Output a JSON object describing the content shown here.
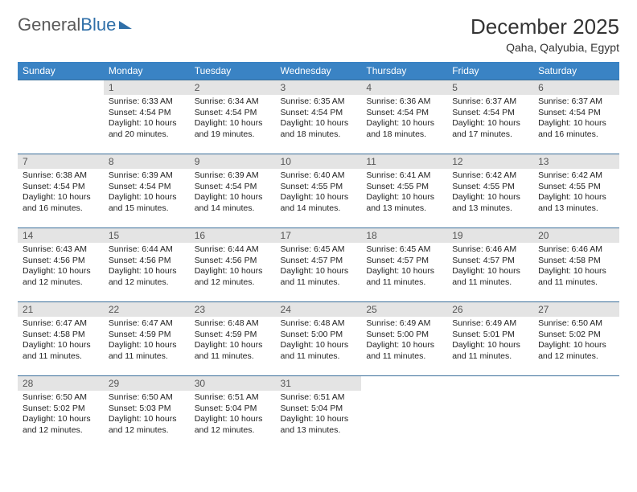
{
  "logo": {
    "text1": "General",
    "text2": "Blue"
  },
  "title": "December 2025",
  "location": "Qaha, Qalyubia, Egypt",
  "weekdays": [
    "Sunday",
    "Monday",
    "Tuesday",
    "Wednesday",
    "Thursday",
    "Friday",
    "Saturday"
  ],
  "colors": {
    "header_bg": "#3a83c4",
    "header_text": "#ffffff",
    "daynum_bg": "#e4e4e4",
    "row_border": "#3a6e9a",
    "logo_gray": "#5a5a5a",
    "logo_blue": "#2f6fa8"
  },
  "fonts": {
    "title_pt": 26,
    "location_pt": 14,
    "weekday_pt": 12,
    "daynum_pt": 12,
    "body_pt": 10.5
  },
  "grid": [
    [
      {
        "n": "",
        "lines": []
      },
      {
        "n": "1",
        "lines": [
          "Sunrise: 6:33 AM",
          "Sunset: 4:54 PM",
          "Daylight: 10 hours",
          "and 20 minutes."
        ]
      },
      {
        "n": "2",
        "lines": [
          "Sunrise: 6:34 AM",
          "Sunset: 4:54 PM",
          "Daylight: 10 hours",
          "and 19 minutes."
        ]
      },
      {
        "n": "3",
        "lines": [
          "Sunrise: 6:35 AM",
          "Sunset: 4:54 PM",
          "Daylight: 10 hours",
          "and 18 minutes."
        ]
      },
      {
        "n": "4",
        "lines": [
          "Sunrise: 6:36 AM",
          "Sunset: 4:54 PM",
          "Daylight: 10 hours",
          "and 18 minutes."
        ]
      },
      {
        "n": "5",
        "lines": [
          "Sunrise: 6:37 AM",
          "Sunset: 4:54 PM",
          "Daylight: 10 hours",
          "and 17 minutes."
        ]
      },
      {
        "n": "6",
        "lines": [
          "Sunrise: 6:37 AM",
          "Sunset: 4:54 PM",
          "Daylight: 10 hours",
          "and 16 minutes."
        ]
      }
    ],
    [
      {
        "n": "7",
        "lines": [
          "Sunrise: 6:38 AM",
          "Sunset: 4:54 PM",
          "Daylight: 10 hours",
          "and 16 minutes."
        ]
      },
      {
        "n": "8",
        "lines": [
          "Sunrise: 6:39 AM",
          "Sunset: 4:54 PM",
          "Daylight: 10 hours",
          "and 15 minutes."
        ]
      },
      {
        "n": "9",
        "lines": [
          "Sunrise: 6:39 AM",
          "Sunset: 4:54 PM",
          "Daylight: 10 hours",
          "and 14 minutes."
        ]
      },
      {
        "n": "10",
        "lines": [
          "Sunrise: 6:40 AM",
          "Sunset: 4:55 PM",
          "Daylight: 10 hours",
          "and 14 minutes."
        ]
      },
      {
        "n": "11",
        "lines": [
          "Sunrise: 6:41 AM",
          "Sunset: 4:55 PM",
          "Daylight: 10 hours",
          "and 13 minutes."
        ]
      },
      {
        "n": "12",
        "lines": [
          "Sunrise: 6:42 AM",
          "Sunset: 4:55 PM",
          "Daylight: 10 hours",
          "and 13 minutes."
        ]
      },
      {
        "n": "13",
        "lines": [
          "Sunrise: 6:42 AM",
          "Sunset: 4:55 PM",
          "Daylight: 10 hours",
          "and 13 minutes."
        ]
      }
    ],
    [
      {
        "n": "14",
        "lines": [
          "Sunrise: 6:43 AM",
          "Sunset: 4:56 PM",
          "Daylight: 10 hours",
          "and 12 minutes."
        ]
      },
      {
        "n": "15",
        "lines": [
          "Sunrise: 6:44 AM",
          "Sunset: 4:56 PM",
          "Daylight: 10 hours",
          "and 12 minutes."
        ]
      },
      {
        "n": "16",
        "lines": [
          "Sunrise: 6:44 AM",
          "Sunset: 4:56 PM",
          "Daylight: 10 hours",
          "and 12 minutes."
        ]
      },
      {
        "n": "17",
        "lines": [
          "Sunrise: 6:45 AM",
          "Sunset: 4:57 PM",
          "Daylight: 10 hours",
          "and 11 minutes."
        ]
      },
      {
        "n": "18",
        "lines": [
          "Sunrise: 6:45 AM",
          "Sunset: 4:57 PM",
          "Daylight: 10 hours",
          "and 11 minutes."
        ]
      },
      {
        "n": "19",
        "lines": [
          "Sunrise: 6:46 AM",
          "Sunset: 4:57 PM",
          "Daylight: 10 hours",
          "and 11 minutes."
        ]
      },
      {
        "n": "20",
        "lines": [
          "Sunrise: 6:46 AM",
          "Sunset: 4:58 PM",
          "Daylight: 10 hours",
          "and 11 minutes."
        ]
      }
    ],
    [
      {
        "n": "21",
        "lines": [
          "Sunrise: 6:47 AM",
          "Sunset: 4:58 PM",
          "Daylight: 10 hours",
          "and 11 minutes."
        ]
      },
      {
        "n": "22",
        "lines": [
          "Sunrise: 6:47 AM",
          "Sunset: 4:59 PM",
          "Daylight: 10 hours",
          "and 11 minutes."
        ]
      },
      {
        "n": "23",
        "lines": [
          "Sunrise: 6:48 AM",
          "Sunset: 4:59 PM",
          "Daylight: 10 hours",
          "and 11 minutes."
        ]
      },
      {
        "n": "24",
        "lines": [
          "Sunrise: 6:48 AM",
          "Sunset: 5:00 PM",
          "Daylight: 10 hours",
          "and 11 minutes."
        ]
      },
      {
        "n": "25",
        "lines": [
          "Sunrise: 6:49 AM",
          "Sunset: 5:00 PM",
          "Daylight: 10 hours",
          "and 11 minutes."
        ]
      },
      {
        "n": "26",
        "lines": [
          "Sunrise: 6:49 AM",
          "Sunset: 5:01 PM",
          "Daylight: 10 hours",
          "and 11 minutes."
        ]
      },
      {
        "n": "27",
        "lines": [
          "Sunrise: 6:50 AM",
          "Sunset: 5:02 PM",
          "Daylight: 10 hours",
          "and 12 minutes."
        ]
      }
    ],
    [
      {
        "n": "28",
        "lines": [
          "Sunrise: 6:50 AM",
          "Sunset: 5:02 PM",
          "Daylight: 10 hours",
          "and 12 minutes."
        ]
      },
      {
        "n": "29",
        "lines": [
          "Sunrise: 6:50 AM",
          "Sunset: 5:03 PM",
          "Daylight: 10 hours",
          "and 12 minutes."
        ]
      },
      {
        "n": "30",
        "lines": [
          "Sunrise: 6:51 AM",
          "Sunset: 5:04 PM",
          "Daylight: 10 hours",
          "and 12 minutes."
        ]
      },
      {
        "n": "31",
        "lines": [
          "Sunrise: 6:51 AM",
          "Sunset: 5:04 PM",
          "Daylight: 10 hours",
          "and 13 minutes."
        ]
      },
      {
        "n": "",
        "lines": []
      },
      {
        "n": "",
        "lines": []
      },
      {
        "n": "",
        "lines": []
      }
    ]
  ]
}
